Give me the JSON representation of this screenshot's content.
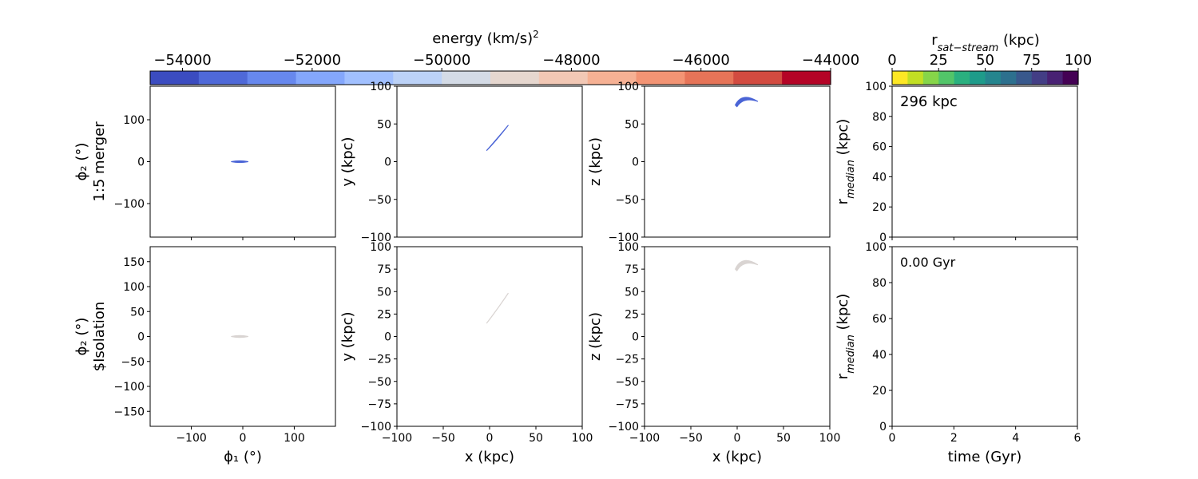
{
  "chart_data": [
    {
      "type": "colorbar",
      "label": "energy (km/s)",
      "label_superscript": "2",
      "range": [
        -54500,
        -44000
      ],
      "ticks": [
        "−54000",
        "−52000",
        "−50000",
        "−48000",
        "−46000",
        "−44000"
      ],
      "tick_values": [
        -54000,
        -52000,
        -50000,
        -48000,
        -46000,
        -44000
      ],
      "colormap": "coolwarm",
      "colors": [
        "#3b4cc0",
        "#4f69d8",
        "#6788ee",
        "#84a7fc",
        "#a1c0ff",
        "#bcd2f7",
        "#d4dbe6",
        "#e6d7cf",
        "#f2c8b5",
        "#f6b194",
        "#f39474",
        "#e67458",
        "#d24b40",
        "#b40426"
      ]
    },
    {
      "type": "colorbar",
      "label": "r",
      "label_subscript": "sat−stream",
      "label_unit": " (kpc)",
      "range": [
        0,
        100
      ],
      "ticks": [
        "0",
        "25",
        "50",
        "75",
        "100"
      ],
      "tick_values": [
        0,
        25,
        50,
        75,
        100
      ],
      "colormap": "viridis_r",
      "colors": [
        "#fde725",
        "#c2df23",
        "#86d549",
        "#52c569",
        "#2ab07f",
        "#1e9b8a",
        "#25858e",
        "#2d708e",
        "#38588c",
        "#433e85",
        "#482173",
        "#440154"
      ]
    },
    {
      "type": "scatter",
      "panel": "row1-phi",
      "ylabel": "ϕ₂ (°)",
      "row_label": "1:5 merger",
      "xlim": [
        -180,
        180
      ],
      "ylim": [
        -180,
        180
      ],
      "yticks": [
        -100,
        0,
        100
      ],
      "ytick_labels": [
        "−100",
        "0",
        "100"
      ],
      "stream_color": "#4a64d6",
      "stream": {
        "x_from": -22,
        "x_to": 10,
        "y_center": 0,
        "half_thickness": 2
      }
    },
    {
      "type": "scatter",
      "panel": "row1-xy",
      "ylabel": "y (kpc)",
      "xlim": [
        -100,
        100
      ],
      "ylim": [
        -100,
        100
      ],
      "yticks": [
        -100,
        -50,
        0,
        50,
        100
      ],
      "ytick_labels": [
        "−100",
        "−50",
        "0",
        "50",
        "100"
      ],
      "stream_color": "#4a64d6",
      "stream": {
        "start": [
          -3,
          15
        ],
        "end": [
          20,
          48
        ]
      }
    },
    {
      "type": "scatter",
      "panel": "row1-xz",
      "ylabel": "z (kpc)",
      "xlim": [
        -100,
        100
      ],
      "ylim": [
        -100,
        100
      ],
      "yticks": [
        -100,
        -50,
        0,
        50,
        100
      ],
      "ytick_labels": [
        "−100",
        "−50",
        "0",
        "50",
        "100"
      ],
      "stream_color": "#4a64d6",
      "stream": {
        "start": [
          -2,
          75
        ],
        "peak": [
          10,
          84
        ],
        "end": [
          22,
          80
        ]
      }
    },
    {
      "type": "line",
      "panel": "row1-rmedian",
      "ylabel": "r",
      "ylabel_subscript": "median",
      "ylabel_unit": " (kpc)",
      "annotation": "296 kpc",
      "xlim": [
        0,
        6
      ],
      "ylim": [
        0,
        100
      ],
      "yticks": [
        0,
        20,
        40,
        60,
        80,
        100
      ],
      "ytick_labels": [
        "0",
        "20",
        "40",
        "60",
        "80",
        "100"
      ],
      "series": []
    },
    {
      "type": "scatter",
      "panel": "row2-phi",
      "ylabel": "ϕ₂ (°)",
      "row_label": "$Isolation",
      "xlabel": "ϕ₁ (°)",
      "xlim": [
        -180,
        180
      ],
      "ylim": [
        -180,
        180
      ],
      "xticks": [
        -100,
        0,
        100
      ],
      "xtick_labels": [
        "−100",
        "0",
        "100"
      ],
      "yticks": [
        -150,
        -100,
        -50,
        0,
        50,
        100,
        150
      ],
      "ytick_labels": [
        "−150",
        "−100",
        "−50",
        "0",
        "50",
        "100",
        "150"
      ],
      "stream_color": "#d9d4d2",
      "stream": {
        "x_from": -22,
        "x_to": 10,
        "y_center": 0,
        "half_thickness": 2
      }
    },
    {
      "type": "scatter",
      "panel": "row2-xy",
      "ylabel": "y (kpc)",
      "xlabel": "x (kpc)",
      "xlim": [
        -100,
        100
      ],
      "ylim": [
        -100,
        100
      ],
      "xticks": [
        -100,
        -50,
        0,
        50,
        100
      ],
      "xtick_labels": [
        "−100",
        "−50",
        "0",
        "50",
        "100"
      ],
      "yticks": [
        -100,
        -75,
        -50,
        -25,
        0,
        25,
        50,
        75,
        100
      ],
      "ytick_labels": [
        "−100",
        "−75",
        "−50",
        "−25",
        "0",
        "25",
        "50",
        "75",
        "100"
      ],
      "stream_color": "#d9d4d2",
      "stream": {
        "start": [
          -3,
          15
        ],
        "end": [
          20,
          48
        ]
      }
    },
    {
      "type": "scatter",
      "panel": "row2-xz",
      "ylabel": "z (kpc)",
      "xlabel": "x (kpc)",
      "xlim": [
        -100,
        100
      ],
      "ylim": [
        -100,
        100
      ],
      "xticks": [
        -100,
        -50,
        0,
        50,
        100
      ],
      "xtick_labels": [
        "−100",
        "−50",
        "0",
        "50",
        "100"
      ],
      "yticks": [
        -100,
        -75,
        -50,
        -25,
        0,
        25,
        50,
        75,
        100
      ],
      "ytick_labels": [
        "−100",
        "−75",
        "−50",
        "−25",
        "0",
        "25",
        "50",
        "75",
        "100"
      ],
      "stream_color": "#d9d4d2",
      "stream": {
        "start": [
          -2,
          75
        ],
        "peak": [
          10,
          84
        ],
        "end": [
          22,
          80
        ]
      }
    },
    {
      "type": "line",
      "panel": "row2-rmedian",
      "ylabel": "r",
      "ylabel_subscript": "median",
      "ylabel_unit": " (kpc)",
      "xlabel": "time (Gyr)",
      "annotation": "0.00 Gyr",
      "xlim": [
        0,
        6
      ],
      "ylim": [
        0,
        100
      ],
      "xticks": [
        0,
        2,
        4,
        6
      ],
      "xtick_labels": [
        "0",
        "2",
        "4",
        "6"
      ],
      "yticks": [
        0,
        20,
        40,
        60,
        80,
        100
      ],
      "ytick_labels": [
        "0",
        "20",
        "40",
        "60",
        "80",
        "100"
      ],
      "series": []
    }
  ]
}
